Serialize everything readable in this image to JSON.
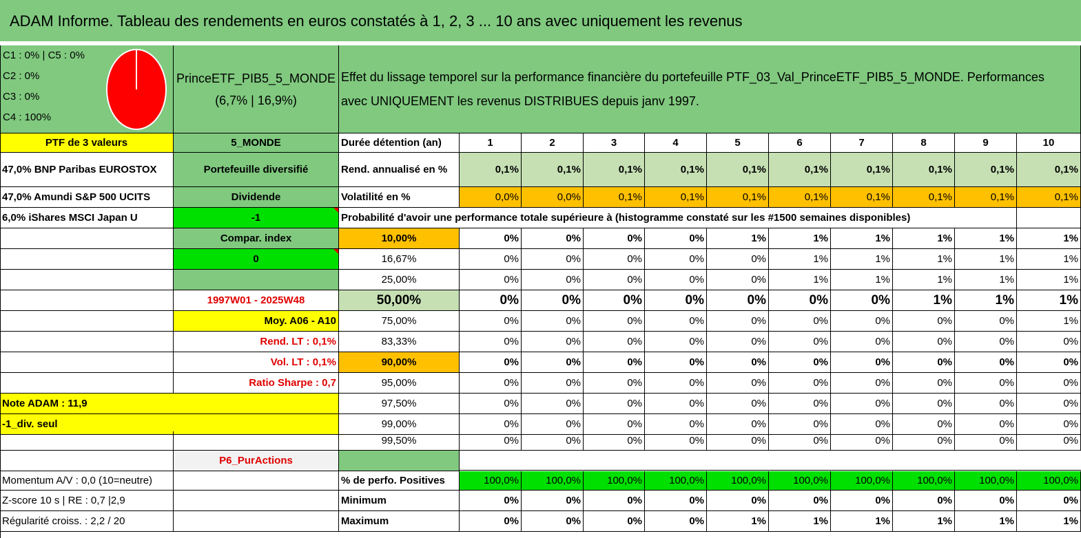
{
  "title": "ADAM Informe. Tableau des rendements en euros constatés à 1, 2, 3 ... 10 ans avec uniquement les revenus",
  "allocation": {
    "lines": [
      "C1 : 0% | C5 : 0%",
      "C2 : 0%",
      "C3 : 0%",
      "C4 : 100%"
    ],
    "pie_color": "#ff0000"
  },
  "portfolio": {
    "name": "PrinceETF_PIB5_5_MONDE",
    "stats": "(6,7% | 16,9%)",
    "description": "Effet du lissage temporel sur la performance financière du portefeuille PTF_03_Val_PrinceETF_PIB5_5_MONDE. Performances avec UNIQUEMENT les revenus DISTRIBUES depuis janv 1997."
  },
  "left_col": {
    "header": "PTF de 3 valeurs",
    "holdings": [
      "47,0% BNP Paribas EUROSTOX",
      "47,0% Amundi S&P 500 UCITS",
      "6,0% iShares MSCI Japan U"
    ],
    "momentum": "Momentum A/V : 0,0 (10=neutre)",
    "zscore": "Z-score 10 s | RE : 0,7 |2,9",
    "regularite": "Régularité croiss. : 2,2 / 20"
  },
  "mid_col": {
    "zone": "5_MONDE",
    "type": "Portefeuille diversifié",
    "mode": "Dividende",
    "value1": "-1",
    "compar": "Compar. index",
    "value2": "0",
    "period": "1997W01 - 2025W48",
    "moy": "Moy. A06 - A10",
    "rend_lt": "Rend. LT : 0,1%",
    "vol_lt": "Vol. LT : 0,1%",
    "sharpe": "Ratio Sharpe : 0,7",
    "note": "Note ADAM : 11,9",
    "div_seul": "-1_div. seul",
    "category": "P6_PurActions"
  },
  "labels": {
    "duree": "Durée détention (an)",
    "rend": "Rend. annualisé en %",
    "vol": "Volatilité en %",
    "prob": "Probabilité d'avoir une performance totale supérieure à (histogramme constaté sur les #1500 semaines disponibles)",
    "positives": "% de perfo. Positives",
    "minimum": "Minimum",
    "maximum": "Maximum"
  },
  "years": [
    "1",
    "2",
    "3",
    "4",
    "5",
    "6",
    "7",
    "8",
    "9",
    "10"
  ],
  "rend": [
    "0,1%",
    "0,1%",
    "0,1%",
    "0,1%",
    "0,1%",
    "0,1%",
    "0,1%",
    "0,1%",
    "0,1%",
    "0,1%"
  ],
  "vol": [
    "0,0%",
    "0,0%",
    "0,1%",
    "0,1%",
    "0,1%",
    "0,1%",
    "0,1%",
    "0,1%",
    "0,1%",
    "0,1%"
  ],
  "prob_rows": [
    {
      "threshold": "10,00%",
      "values": [
        "0%",
        "0%",
        "0%",
        "0%",
        "1%",
        "1%",
        "1%",
        "1%",
        "1%",
        "1%"
      ]
    },
    {
      "threshold": "16,67%",
      "values": [
        "0%",
        "0%",
        "0%",
        "0%",
        "0%",
        "1%",
        "1%",
        "1%",
        "1%",
        "1%"
      ]
    },
    {
      "threshold": "25,00%",
      "values": [
        "0%",
        "0%",
        "0%",
        "0%",
        "0%",
        "1%",
        "1%",
        "1%",
        "1%",
        "1%"
      ]
    },
    {
      "threshold": "50,00%",
      "values": [
        "0%",
        "0%",
        "0%",
        "0%",
        "0%",
        "0%",
        "0%",
        "1%",
        "1%",
        "1%"
      ]
    },
    {
      "threshold": "75,00%",
      "values": [
        "0%",
        "0%",
        "0%",
        "0%",
        "0%",
        "0%",
        "0%",
        "0%",
        "0%",
        "1%"
      ]
    },
    {
      "threshold": "83,33%",
      "values": [
        "0%",
        "0%",
        "0%",
        "0%",
        "0%",
        "0%",
        "0%",
        "0%",
        "0%",
        "0%"
      ]
    },
    {
      "threshold": "90,00%",
      "values": [
        "0%",
        "0%",
        "0%",
        "0%",
        "0%",
        "0%",
        "0%",
        "0%",
        "0%",
        "0%"
      ]
    },
    {
      "threshold": "95,00%",
      "values": [
        "0%",
        "0%",
        "0%",
        "0%",
        "0%",
        "0%",
        "0%",
        "0%",
        "0%",
        "0%"
      ]
    },
    {
      "threshold": "97,50%",
      "values": [
        "0%",
        "0%",
        "0%",
        "0%",
        "0%",
        "0%",
        "0%",
        "0%",
        "0%",
        "0%"
      ]
    },
    {
      "threshold": "99,00%",
      "values": [
        "0%",
        "0%",
        "0%",
        "0%",
        "0%",
        "0%",
        "0%",
        "0%",
        "0%",
        "0%"
      ]
    },
    {
      "threshold": "99,50%",
      "values": [
        "0%",
        "0%",
        "0%",
        "0%",
        "0%",
        "0%",
        "0%",
        "0%",
        "0%",
        "0%"
      ]
    }
  ],
  "positives": [
    "100,0%",
    "100,0%",
    "100,0%",
    "100,0%",
    "100,0%",
    "100,0%",
    "100,0%",
    "100,0%",
    "100,0%",
    "100,0%"
  ],
  "minimum": [
    "0%",
    "0%",
    "0%",
    "0%",
    "0%",
    "0%",
    "0%",
    "0%",
    "0%",
    "0%"
  ],
  "maximum": [
    "0%",
    "0%",
    "0%",
    "0%",
    "1%",
    "1%",
    "1%",
    "1%",
    "1%",
    "1%"
  ],
  "colors": {
    "header_green": "#80c97f",
    "light_green": "#c6e0b4",
    "bright_green": "#00e000",
    "yellow": "#ffff00",
    "orange": "#ffc000",
    "red_text": "#e00000"
  }
}
